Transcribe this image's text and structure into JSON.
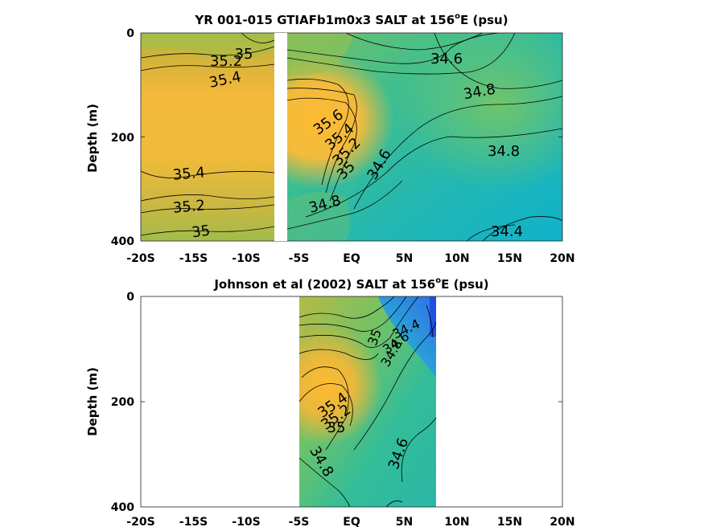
{
  "chart_data": [
    {
      "type": "contour",
      "title_main": "YR 001-015 GTIAFb1m0x3 SALT at 156",
      "title_sup": "o",
      "title_tail": "E (psu)",
      "ylabel": "Depth (m)",
      "xlim": [
        -20,
        20
      ],
      "ylim": [
        0,
        400
      ],
      "y_reversed": true,
      "x_ticks": [
        -20,
        -15,
        -10,
        -5,
        0,
        5,
        10,
        15,
        20
      ],
      "x_tick_labels": [
        "-20S",
        "-15S",
        "-10S",
        "-5S",
        "EQ",
        "5N",
        "10N",
        "15N",
        "20N"
      ],
      "y_ticks": [
        0,
        200,
        400
      ],
      "y_tick_labels": [
        "0",
        "200",
        "400"
      ],
      "data_gap_lat": [
        -7.5,
        -6.5
      ],
      "contour_labels": [
        {
          "text": "35",
          "lat": -10,
          "depth": 40
        },
        {
          "text": "35.2",
          "lat": -12.3,
          "depth": 52
        },
        {
          "text": "35.4",
          "lat": -12.6,
          "depth": 90
        },
        {
          "text": "34.6",
          "lat": 8.9,
          "depth": 52
        },
        {
          "text": "34.8",
          "lat": 11.6,
          "depth": 115
        },
        {
          "text": "35.6",
          "lat": -2.2,
          "depth": 170
        },
        {
          "text": "35.4",
          "lat": -1.5,
          "depth": 198
        },
        {
          "text": "35.2",
          "lat": -1.3,
          "depth": 225
        },
        {
          "text": "35",
          "lat": -0.8,
          "depth": 257
        },
        {
          "text": "34.6",
          "lat": 2.3,
          "depth": 250
        },
        {
          "text": "34.8",
          "lat": 15.2,
          "depth": 227
        },
        {
          "text": "35.4",
          "lat": -15.6,
          "depth": 268
        },
        {
          "text": "35.2",
          "lat": -15.6,
          "depth": 330
        },
        {
          "text": "34.8",
          "lat": -4.9,
          "depth": 330
        },
        {
          "text": "35",
          "lat": -14.9,
          "depth": 372
        },
        {
          "text": "34.4",
          "lat": 14.2,
          "depth": 375
        }
      ]
    },
    {
      "type": "contour",
      "title_main": "Johnson et al (2002) SALT at 156",
      "title_sup": "o",
      "title_tail": "E (psu)",
      "ylabel": "Depth (m)",
      "xlim": [
        -20,
        20
      ],
      "ylim": [
        0,
        400
      ],
      "y_reversed": true,
      "data_lat_range": [
        -5,
        8
      ],
      "x_ticks": [
        -20,
        -15,
        -10,
        -5,
        0,
        5,
        10,
        15,
        20
      ],
      "x_tick_labels": [
        "-20S",
        "-15S",
        "-10S",
        "-5S",
        "EQ",
        "5N",
        "10N",
        "15N",
        "20N"
      ],
      "y_ticks": [
        0,
        200,
        400
      ],
      "y_tick_labels": [
        "0",
        "200",
        "400"
      ],
      "contour_labels": [
        {
          "text": "34.4",
          "lat": 5.0,
          "depth": 60
        },
        {
          "text": "34.6",
          "lat": 4.0,
          "depth": 90
        },
        {
          "text": "34.8",
          "lat": 3.8,
          "depth": 110
        },
        {
          "text": "35",
          "lat": 2.3,
          "depth": 75
        },
        {
          "text": "35.4",
          "lat": -1.6,
          "depth": 215
        },
        {
          "text": "35.2",
          "lat": -1.2,
          "depth": 235
        },
        {
          "text": "35",
          "lat": -1.4,
          "depth": 250
        },
        {
          "text": "34.6",
          "lat": 4.8,
          "depth": 305
        },
        {
          "text": "34.8",
          "lat": -2.6,
          "depth": 320
        }
      ]
    }
  ]
}
